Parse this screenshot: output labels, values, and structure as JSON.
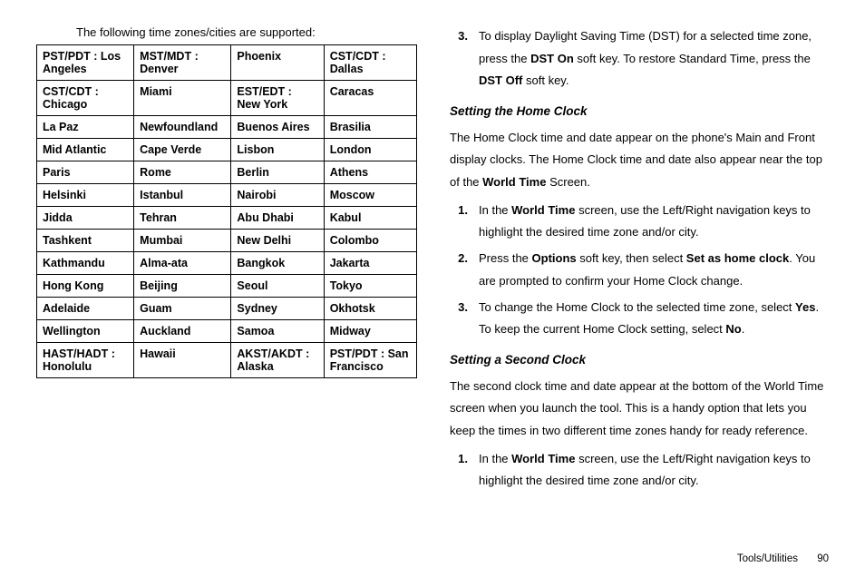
{
  "left": {
    "intro": "The following time zones/cities are supported:",
    "rows": [
      [
        "PST/PDT : Los Angeles",
        "MST/MDT : Denver",
        "Phoenix",
        "CST/CDT : Dallas"
      ],
      [
        "CST/CDT : Chicago",
        "Miami",
        "EST/EDT : New York",
        "Caracas"
      ],
      [
        "La Paz",
        "Newfoundland",
        "Buenos Aires",
        "Brasilia"
      ],
      [
        "Mid Atlantic",
        "Cape Verde",
        "Lisbon",
        "London"
      ],
      [
        "Paris",
        "Rome",
        "Berlin",
        "Athens"
      ],
      [
        "Helsinki",
        "Istanbul",
        "Nairobi",
        "Moscow"
      ],
      [
        "Jidda",
        "Tehran",
        "Abu Dhabi",
        "Kabul"
      ],
      [
        "Tashkent",
        "Mumbai",
        "New Delhi",
        "Colombo"
      ],
      [
        "Kathmandu",
        "Alma-ata",
        "Bangkok",
        "Jakarta"
      ],
      [
        "Hong Kong",
        "Beijing",
        "Seoul",
        "Tokyo"
      ],
      [
        "Adelaide",
        "Guam",
        "Sydney",
        "Okhotsk"
      ],
      [
        "Wellington",
        "Auckland",
        "Samoa",
        "Midway"
      ],
      [
        "HAST/HADT : Honolulu",
        "Hawaii",
        "AKST/AKDT : Alaska",
        "PST/PDT : San Francisco"
      ]
    ]
  },
  "right": {
    "step3a": {
      "num": "3.",
      "p1": "To display Daylight Saving Time (DST) for a selected time zone, press the ",
      "b1": "DST On",
      "p2": " soft key. To restore Standard Time, press the ",
      "b2": "DST Off",
      "p3": " soft key."
    },
    "home": {
      "heading": "Setting the Home Clock",
      "intro1": "The Home Clock time and date appear on the phone's Main and Front display clocks. The Home Clock time and date also appear near the top of the ",
      "introB": "World Time",
      "intro2": " Screen.",
      "s1": {
        "num": "1.",
        "a": "In the ",
        "b": "World Time",
        "c": " screen, use the Left/Right navigation keys to highlight the desired time zone and/or city."
      },
      "s2": {
        "num": "2.",
        "a": "Press the ",
        "b1": "Options",
        "c": " soft key, then select ",
        "b2": "Set as home clock",
        "d": ". You are prompted to confirm your Home Clock change."
      },
      "s3": {
        "num": "3.",
        "a": "To change the Home Clock to the selected time zone, select ",
        "b1": "Yes",
        "c": ". To keep the current Home Clock setting, select ",
        "b2": "No",
        "d": "."
      }
    },
    "second": {
      "heading": "Setting a Second Clock",
      "intro": "The second clock time and date appear at the bottom of the World Time screen when you launch the tool. This is a handy option that lets you keep the times in two different time zones handy for ready reference.",
      "s1": {
        "num": "1.",
        "a": "In the ",
        "b": "World Time",
        "c": " screen, use the Left/Right navigation keys to highlight the desired time zone and/or city."
      }
    }
  },
  "footer": {
    "section": "Tools/Utilities",
    "page": "90"
  }
}
